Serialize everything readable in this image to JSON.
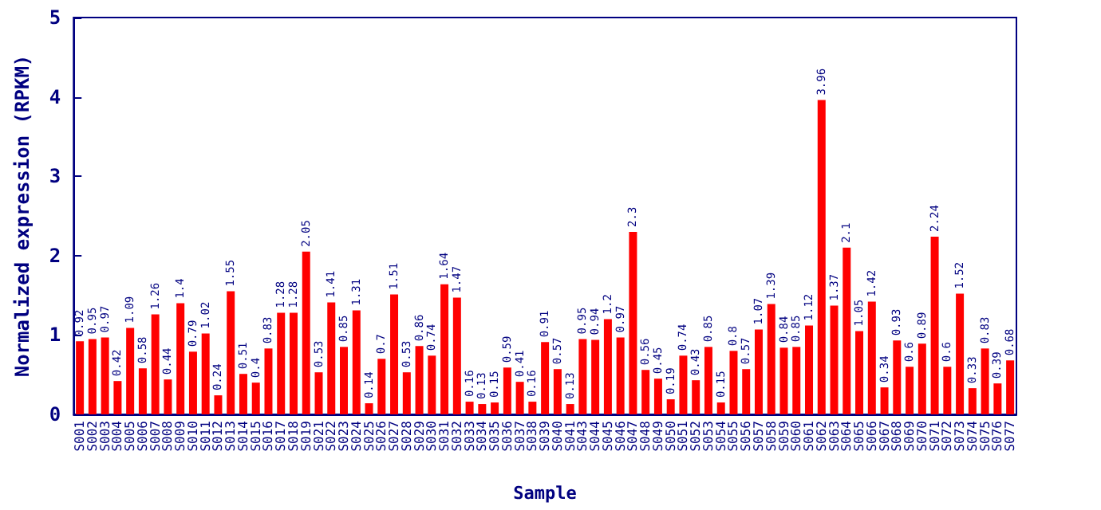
{
  "chart_data": {
    "type": "bar",
    "xlabel": "Sample",
    "ylabel": "Normalized expression (RPKM)",
    "categories": [
      "S001",
      "S002",
      "S003",
      "S004",
      "S005",
      "S006",
      "S007",
      "S008",
      "S009",
      "S010",
      "S011",
      "S012",
      "S013",
      "S014",
      "S015",
      "S016",
      "S017",
      "S018",
      "S019",
      "S021",
      "S022",
      "S023",
      "S024",
      "S025",
      "S026",
      "S027",
      "S028",
      "S029",
      "S030",
      "S031",
      "S032",
      "S033",
      "S034",
      "S035",
      "S036",
      "S037",
      "S038",
      "S039",
      "S040",
      "S041",
      "S043",
      "S044",
      "S045",
      "S046",
      "S047",
      "S048",
      "S049",
      "S050",
      "S051",
      "S052",
      "S053",
      "S054",
      "S055",
      "S056",
      "S057",
      "S058",
      "S059",
      "S060",
      "S061",
      "S062",
      "S063",
      "S064",
      "S065",
      "S066",
      "S067",
      "S068",
      "S069",
      "S070",
      "S071",
      "S072",
      "S073",
      "S074",
      "S075",
      "S076",
      "S077"
    ],
    "values": [
      0.92,
      0.95,
      0.97,
      0.42,
      1.09,
      0.58,
      1.26,
      0.44,
      1.4,
      0.79,
      1.02,
      0.24,
      1.55,
      0.51,
      0.4,
      0.83,
      1.28,
      1.28,
      2.05,
      0.53,
      1.41,
      0.85,
      1.31,
      0.14,
      0.7,
      1.51,
      0.53,
      0.86,
      0.74,
      1.64,
      1.47,
      0.16,
      0.13,
      0.15,
      0.59,
      0.41,
      0.16,
      0.91,
      0.57,
      0.13,
      0.95,
      0.94,
      1.2,
      0.97,
      2.3,
      0.56,
      0.45,
      0.19,
      0.74,
      0.43,
      0.85,
      0.15,
      0.8,
      0.57,
      1.07,
      1.39,
      0.84,
      0.85,
      1.12,
      3.96,
      1.37,
      2.1,
      1.05,
      1.42,
      0.34,
      0.93,
      0.6,
      0.89,
      2.24,
      0.6,
      1.52,
      0.33,
      0.83,
      0.39,
      0.68
    ],
    "color": "#ff0000",
    "ylim": [
      0,
      5
    ],
    "yticks": [
      0,
      1,
      2,
      3,
      4,
      5
    ],
    "data_labels": true
  }
}
